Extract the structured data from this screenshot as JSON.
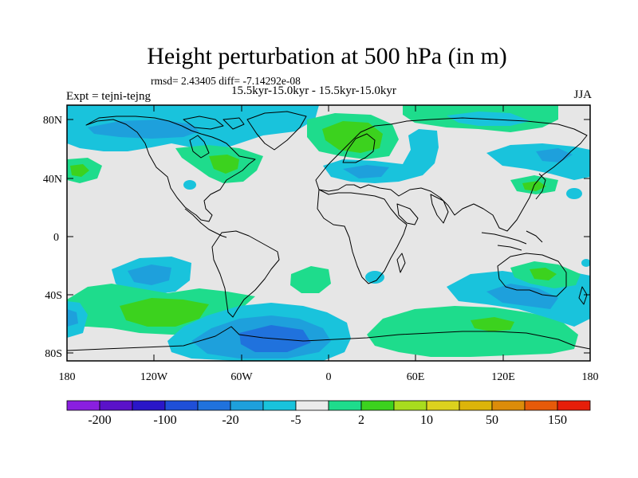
{
  "title": "Height perturbation at 500 hPa (in m)",
  "stats": "rmsd= 2.43405 diff= -7.14292e-08",
  "subtitle": "15.5kyr-15.0kyr - 15.5kyr-15.0kyr",
  "expt": "Expt = tejni-tejng",
  "season": "JJA",
  "lat_ticks": [
    "80N",
    "40N",
    "0",
    "40S",
    "80S"
  ],
  "lon_ticks": [
    "180",
    "120W",
    "60W",
    "0",
    "60E",
    "120E",
    "180"
  ],
  "colorbar": {
    "colors": [
      "#8a1fe0",
      "#5a12c9",
      "#2a16c8",
      "#1f4fd8",
      "#2072dd",
      "#1ea0dc",
      "#19c3dc",
      "#ebebeb",
      "#1edc8c",
      "#3cd21e",
      "#a8dc1e",
      "#dcd21e",
      "#dcb40a",
      "#dc8c0a",
      "#e65a0a",
      "#e61e0a"
    ],
    "labels": [
      "-200",
      "-100",
      "-20",
      "-5",
      "2",
      "10",
      "50",
      "150"
    ]
  },
  "colors": {
    "background": "#e6e6e6",
    "coast": "#000000"
  }
}
